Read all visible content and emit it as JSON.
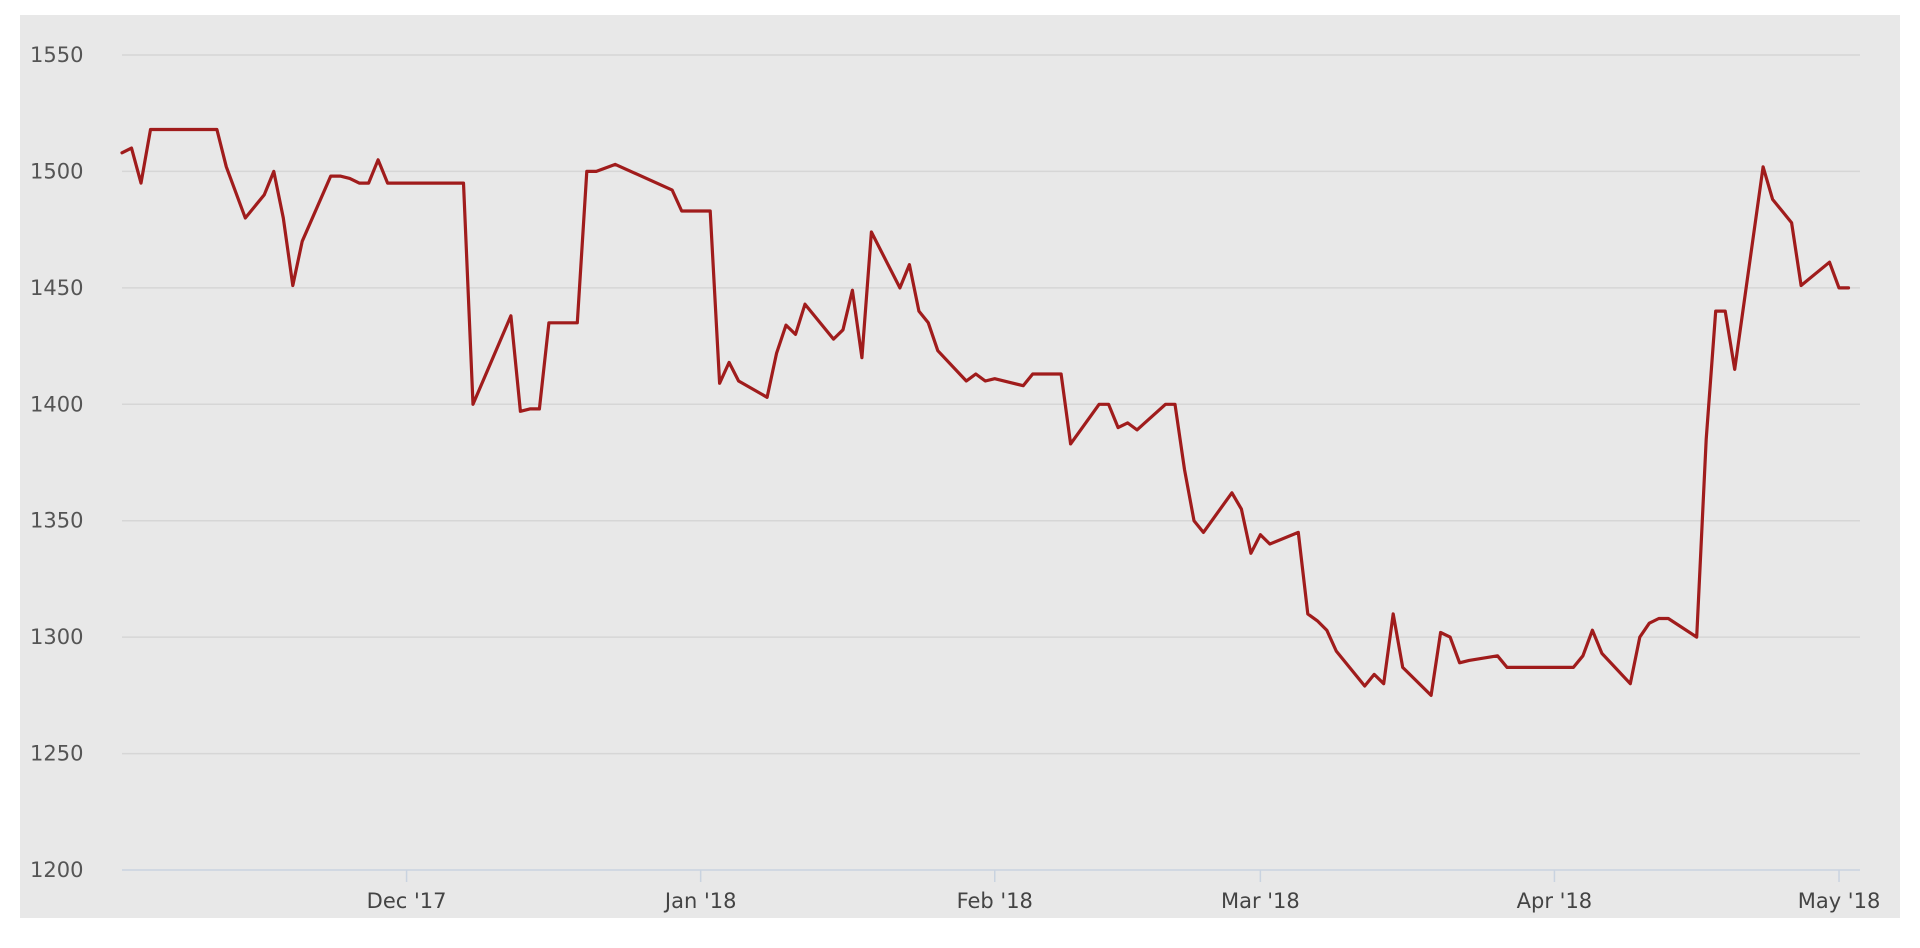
{
  "chart_data": {
    "type": "line",
    "title": "",
    "xlabel": "",
    "ylabel": "",
    "ylim": [
      1200,
      1550
    ],
    "yticks": [
      1200,
      1250,
      1300,
      1350,
      1400,
      1450,
      1500,
      1550
    ],
    "xlim": [
      "2017-11-01",
      "2018-05-03"
    ],
    "xticks": [
      {
        "date": "2017-12-01",
        "label": "Dec '17"
      },
      {
        "date": "2018-01-01",
        "label": "Jan '18"
      },
      {
        "date": "2018-02-01",
        "label": "Feb '18"
      },
      {
        "date": "2018-03-01",
        "label": "Mar '18"
      },
      {
        "date": "2018-04-01",
        "label": "Apr '18"
      },
      {
        "date": "2018-05-01",
        "label": "May '18"
      }
    ],
    "grid": {
      "horizontal": true,
      "vertical": false
    },
    "legend": "none",
    "colors": {
      "plot_background": "#e8e8e8",
      "grid": "#d6d6d6",
      "line": "#a01c1c"
    },
    "series": [
      {
        "color": "#a01c1c",
        "x": [
          "2017-11-01",
          "2017-11-02",
          "2017-11-03",
          "2017-11-04",
          "2017-11-11",
          "2017-11-12",
          "2017-11-14",
          "2017-11-16",
          "2017-11-17",
          "2017-11-18",
          "2017-11-19",
          "2017-11-20",
          "2017-11-23",
          "2017-11-24",
          "2017-11-25",
          "2017-11-26",
          "2017-11-27",
          "2017-11-28",
          "2017-11-29",
          "2017-12-07",
          "2017-12-08",
          "2017-12-12",
          "2017-12-13",
          "2017-12-14",
          "2017-12-15",
          "2017-12-16",
          "2017-12-19",
          "2017-12-20",
          "2017-12-21",
          "2017-12-23",
          "2017-12-29",
          "2017-12-30",
          "2018-01-02",
          "2018-01-03",
          "2018-01-04",
          "2018-01-05",
          "2018-01-08",
          "2018-01-09",
          "2018-01-10",
          "2018-01-11",
          "2018-01-12",
          "2018-01-15",
          "2018-01-16",
          "2018-01-17",
          "2018-01-18",
          "2018-01-19",
          "2018-01-22",
          "2018-01-23",
          "2018-01-24",
          "2018-01-25",
          "2018-01-26",
          "2018-01-29",
          "2018-01-30",
          "2018-01-31",
          "2018-02-01",
          "2018-02-04",
          "2018-02-05",
          "2018-02-08",
          "2018-02-09",
          "2018-02-12",
          "2018-02-13",
          "2018-02-14",
          "2018-02-15",
          "2018-02-16",
          "2018-02-19",
          "2018-02-20",
          "2018-02-21",
          "2018-02-22",
          "2018-02-23",
          "2018-02-26",
          "2018-02-27",
          "2018-02-28",
          "2018-03-01",
          "2018-03-02",
          "2018-03-05",
          "2018-03-06",
          "2018-03-07",
          "2018-03-08",
          "2018-03-09",
          "2018-03-12",
          "2018-03-13",
          "2018-03-14",
          "2018-03-15",
          "2018-03-16",
          "2018-03-19",
          "2018-03-20",
          "2018-03-21",
          "2018-03-22",
          "2018-03-23",
          "2018-03-26",
          "2018-03-27",
          "2018-03-28",
          "2018-04-03",
          "2018-04-04",
          "2018-04-05",
          "2018-04-06",
          "2018-04-09",
          "2018-04-10",
          "2018-04-11",
          "2018-04-12",
          "2018-04-13",
          "2018-04-16",
          "2018-04-17",
          "2018-04-18",
          "2018-04-19",
          "2018-04-20",
          "2018-04-23",
          "2018-04-24",
          "2018-04-25",
          "2018-04-26",
          "2018-04-27",
          "2018-04-30",
          "2018-05-01",
          "2018-05-02"
        ],
        "y": [
          1508,
          1510,
          1495,
          1518,
          1518,
          1502,
          1480,
          1490,
          1500,
          1480,
          1451,
          1470,
          1498,
          1498,
          1497,
          1495,
          1495,
          1505,
          1495,
          1495,
          1400,
          1438,
          1397,
          1398,
          1398,
          1435,
          1435,
          1500,
          1500,
          1503,
          1492,
          1483,
          1483,
          1409,
          1418,
          1410,
          1403,
          1422,
          1434,
          1430,
          1443,
          1428,
          1432,
          1449,
          1420,
          1474,
          1450,
          1460,
          1440,
          1435,
          1423,
          1410,
          1413,
          1410,
          1411,
          1408,
          1413,
          1413,
          1383,
          1400,
          1400,
          1390,
          1392,
          1389,
          1400,
          1400,
          1372,
          1350,
          1345,
          1362,
          1355,
          1336,
          1344,
          1340,
          1345,
          1310,
          1307,
          1303,
          1294,
          1279,
          1284,
          1280,
          1310,
          1287,
          1275,
          1302,
          1300,
          1289,
          1290,
          1292,
          1287,
          1287,
          1287,
          1292,
          1303,
          1293,
          1280,
          1300,
          1306,
          1308,
          1308,
          1300,
          1385,
          1440,
          1440,
          1415,
          1502,
          1488,
          1483,
          1478,
          1451,
          1461,
          1450,
          1450
        ]
      }
    ]
  }
}
